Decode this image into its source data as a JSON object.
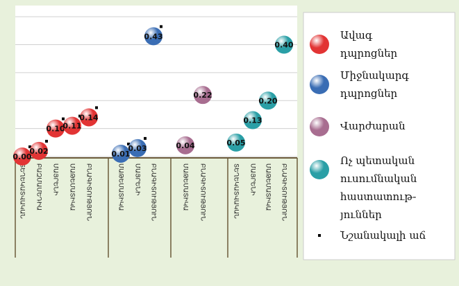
{
  "chart_data": {
    "type": "bubble-dots",
    "categories": [
      "ՏԵՂԵԿԱՏՎԱԿԱՆ",
      "ԲԱԶՄԱՄԵԴԻԱ",
      "ՄԱՅՐԵՆԻ",
      "ՄԱԹԵՄԱՏԻԿԱ",
      "ԲՆԱԳԻՏՈՒԹՅՈՒՆ",
      "ՄԱԹԵՄԱՏԻԿԱ",
      "ՄԱՅՐԵՆԻ",
      "ԲՆԱԳԻՏՈՒԹՅՈՒՆ",
      "ՄԱԹԵՄԱՏԻԿԱ",
      "ԲՆԱԳԻՏՈՒԹՅՈՒՆ",
      "ՏԵՂԵԿԱՏՎԱԿԱՆ",
      "ՄԱՅՐԵՆԻ",
      "ՄԱԹԵՄԱՏԻԿԱ",
      "ԲՆԱԳԻՏՈՒԹՅՈՒՆ"
    ],
    "series": [
      {
        "name": "Ավագ\nդպրոցներ",
        "color": "#e23434",
        "values": [
          0,
          0.02,
          0.1,
          0.11,
          0.14,
          null,
          null,
          null,
          null,
          null,
          null,
          null,
          null,
          null
        ],
        "value_labels": [
          "0.00",
          "0.02",
          "0.10",
          "0.11",
          "0.14",
          null,
          null,
          null,
          null,
          null,
          null,
          null,
          null,
          null
        ],
        "significant": [
          true,
          true,
          true,
          true,
          true,
          null,
          null,
          null,
          null,
          null,
          null,
          null,
          null,
          null
        ]
      },
      {
        "name": "Միջնակարգ\nդպրոցներ",
        "color": "#3a6db4",
        "values": [
          null,
          null,
          null,
          null,
          null,
          0.01,
          0.03,
          0.43,
          null,
          null,
          null,
          null,
          null,
          null
        ],
        "value_labels": [
          null,
          null,
          null,
          null,
          null,
          "0.01",
          "0.03",
          "0.43",
          null,
          null,
          null,
          null,
          null,
          null
        ],
        "significant": [
          null,
          null,
          null,
          null,
          null,
          true,
          true,
          true,
          null,
          null,
          null,
          null,
          null,
          null
        ]
      },
      {
        "name": "Վարժարան",
        "color": "#a86d90",
        "values": [
          null,
          null,
          null,
          null,
          null,
          null,
          null,
          null,
          0.04,
          0.22,
          null,
          null,
          null,
          null
        ],
        "value_labels": [
          null,
          null,
          null,
          null,
          null,
          null,
          null,
          null,
          "0.04",
          "0.22",
          null,
          null,
          null,
          null
        ],
        "significant": [
          null,
          null,
          null,
          null,
          null,
          null,
          null,
          null,
          false,
          false,
          null,
          null,
          null,
          null
        ]
      },
      {
        "name": "Ոչ պետական\nուսումնական\nհաստատութ-\nյուններ",
        "color": "#2a9fa6",
        "values": [
          null,
          null,
          null,
          null,
          null,
          null,
          null,
          null,
          null,
          null,
          0.05,
          0.13,
          0.2,
          0.4
        ],
        "value_labels": [
          null,
          null,
          null,
          null,
          null,
          null,
          null,
          null,
          null,
          null,
          "0.05",
          "0.13",
          "0.20",
          "0.40"
        ],
        "significant": [
          null,
          null,
          null,
          null,
          null,
          null,
          null,
          null,
          null,
          null,
          false,
          false,
          false,
          false
        ]
      }
    ],
    "significance_label": "Նշանակալի աճ",
    "ylim": [
      0,
      0.54
    ],
    "yticks": [
      0,
      0.1,
      0.2,
      0.3,
      0.4,
      0.5
    ],
    "grid": true
  }
}
